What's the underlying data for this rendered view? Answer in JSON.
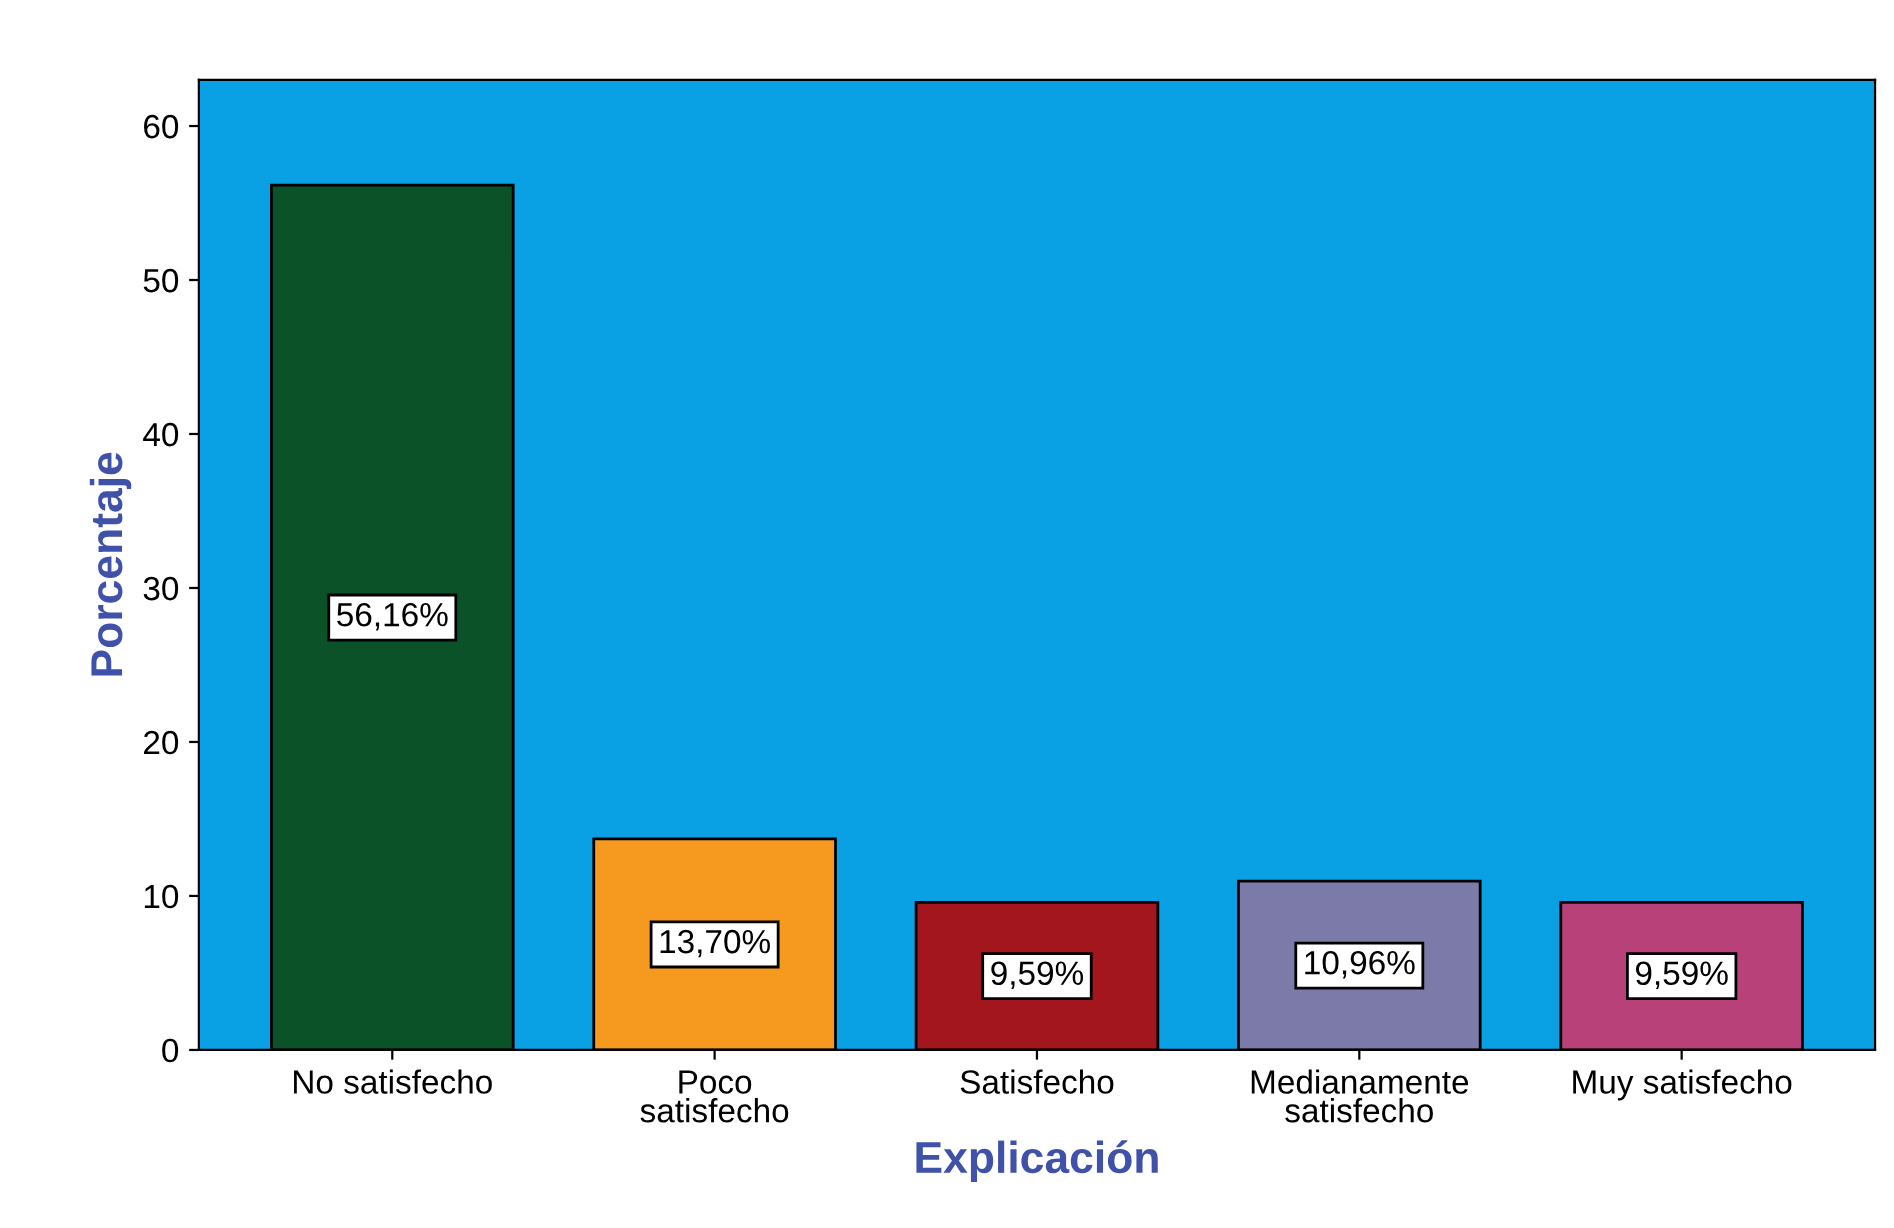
{
  "chart_data": {
    "type": "bar",
    "xlabel": "Explicación",
    "ylabel": "Porcentaje",
    "categories": [
      "No satisfecho",
      "Poco\nsatisfecho",
      "Satisfecho",
      "Medianamente\nsatisfecho",
      "Muy satisfecho"
    ],
    "values": [
      56.16,
      13.7,
      9.59,
      10.96,
      9.59
    ],
    "value_labels": [
      "56,16%",
      "13,70%",
      "9,59%",
      "10,96%",
      "9,59%"
    ],
    "colors": [
      "#0b5229",
      "#f59a1f",
      "#a3161e",
      "#7b7aa8",
      "#b8417a"
    ],
    "ylim": [
      0,
      63
    ],
    "yticks": [
      0,
      10,
      20,
      30,
      40,
      50,
      60
    ],
    "grid": false,
    "legend": false
  }
}
